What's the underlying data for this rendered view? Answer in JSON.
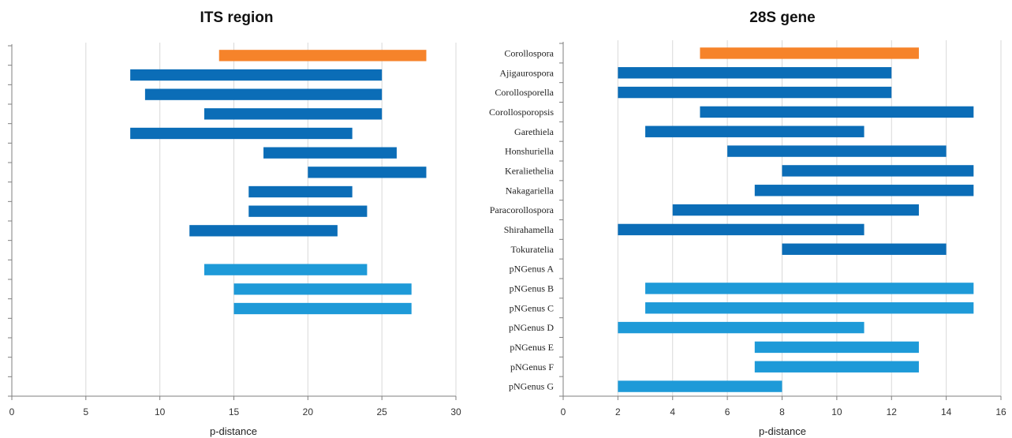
{
  "colors": {
    "highlight": "#f6832a",
    "dark_blue": "#0b6db7",
    "light_blue": "#1e9ad8",
    "grid": "#d9d9d9",
    "axis": "#7f7f7f"
  },
  "chart_data": [
    {
      "type": "bar",
      "orientation": "horizontal-range",
      "title": "ITS region",
      "xlabel": "p-distance",
      "xlim": [
        0,
        30
      ],
      "xticks": [
        0,
        5,
        10,
        15,
        20,
        25,
        30
      ],
      "grid": true,
      "show_category_labels": false,
      "categories": [
        "Corollospora",
        "Ajigaurospora",
        "Corollosporella",
        "Corollosporopsis",
        "Garethiela",
        "Honshuriella",
        "Keraliethelia",
        "Nakagariella",
        "Paracorollospora",
        "Shirahamella",
        "Tokuratelia",
        "pNGenus A",
        "pNGenus B",
        "pNGenus C",
        "pNGenus D",
        "pNGenus E",
        "pNGenus F",
        "pNGenus G"
      ],
      "ranges": [
        [
          14,
          28
        ],
        [
          8,
          25
        ],
        [
          9,
          25
        ],
        [
          13,
          25
        ],
        [
          8,
          23
        ],
        [
          17,
          26
        ],
        [
          20,
          28
        ],
        [
          16,
          23
        ],
        [
          16,
          24
        ],
        [
          12,
          22
        ],
        null,
        [
          13,
          24
        ],
        [
          15,
          27
        ],
        [
          15,
          27
        ],
        null,
        null,
        null,
        null
      ],
      "bar_colors": [
        "highlight",
        "dark_blue",
        "dark_blue",
        "dark_blue",
        "dark_blue",
        "dark_blue",
        "dark_blue",
        "dark_blue",
        "dark_blue",
        "dark_blue",
        "dark_blue",
        "light_blue",
        "light_blue",
        "light_blue",
        "light_blue",
        "light_blue",
        "light_blue",
        "light_blue"
      ]
    },
    {
      "type": "bar",
      "orientation": "horizontal-range",
      "title": "28S gene",
      "xlabel": "p-distance",
      "xlim": [
        0,
        16
      ],
      "xticks": [
        0,
        2,
        4,
        6,
        8,
        10,
        12,
        14,
        16
      ],
      "grid": true,
      "show_category_labels": true,
      "categories": [
        "Corollospora",
        "Ajigaurospora",
        "Corollosporella",
        "Corollosporopsis",
        "Garethiela",
        "Honshuriella",
        "Keraliethelia",
        "Nakagariella",
        "Paracorollospora",
        "Shirahamella",
        "Tokuratelia",
        "pNGenus A",
        "pNGenus B",
        "pNGenus C",
        "pNGenus D",
        "pNGenus E",
        "pNGenus F",
        "pNGenus G"
      ],
      "ranges": [
        [
          5,
          13
        ],
        [
          2,
          12
        ],
        [
          2,
          12
        ],
        [
          5,
          15
        ],
        [
          3,
          11
        ],
        [
          6,
          14
        ],
        [
          8,
          15
        ],
        [
          7,
          15
        ],
        [
          4,
          13
        ],
        [
          2,
          11
        ],
        [
          8,
          14
        ],
        null,
        [
          3,
          15
        ],
        [
          3,
          15
        ],
        [
          2,
          11
        ],
        [
          7,
          13
        ],
        [
          7,
          13
        ],
        [
          2,
          8
        ]
      ],
      "bar_colors": [
        "highlight",
        "dark_blue",
        "dark_blue",
        "dark_blue",
        "dark_blue",
        "dark_blue",
        "dark_blue",
        "dark_blue",
        "dark_blue",
        "dark_blue",
        "dark_blue",
        "light_blue",
        "light_blue",
        "light_blue",
        "light_blue",
        "light_blue",
        "light_blue",
        "light_blue"
      ]
    }
  ]
}
